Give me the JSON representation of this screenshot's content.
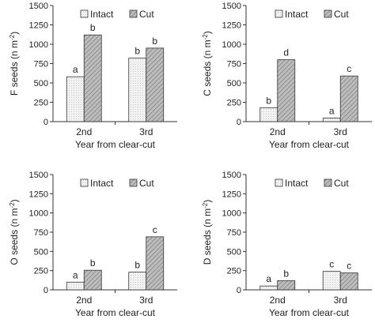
{
  "legend_items": [
    "Intact",
    "Cut"
  ],
  "colors": {
    "intact": "#f2f2f2",
    "intact_pattern": "#c9c9c9",
    "cut": "#bdbdbd",
    "cut_pattern": "#7a7a7a",
    "axis": "#333333"
  },
  "chart_data": [
    {
      "type": "bar",
      "panel": "top-left",
      "categories": [
        "2nd",
        "3rd"
      ],
      "series": [
        {
          "name": "Intact",
          "values": [
            580,
            820
          ],
          "labels": [
            "a",
            "b"
          ]
        },
        {
          "name": "Cut",
          "values": [
            1120,
            950
          ],
          "labels": [
            "b",
            "b"
          ]
        }
      ],
      "ylabel_main": "F seeds (n m",
      "ylabel_sup": "-2",
      "ylabel_end": ")",
      "xlabel": "Year from clear-cut",
      "ylim": [
        0,
        1500
      ],
      "yticks": [
        "0",
        "250",
        "500",
        "750",
        "1000",
        "1250",
        "1500"
      ],
      "legend": "top-right",
      "grid": false
    },
    {
      "type": "bar",
      "panel": "top-right",
      "categories": [
        "2nd",
        "3rd"
      ],
      "series": [
        {
          "name": "Intact",
          "values": [
            180,
            45
          ],
          "labels": [
            "b",
            "a"
          ]
        },
        {
          "name": "Cut",
          "values": [
            800,
            590
          ],
          "labels": [
            "d",
            "c"
          ]
        }
      ],
      "ylabel_main": "C seeds (n m",
      "ylabel_sup": "-2",
      "ylabel_end": ")",
      "xlabel": "Year from clear-cut",
      "ylim": [
        0,
        1500
      ],
      "yticks": [
        "0",
        "250",
        "500",
        "750",
        "1000",
        "1250",
        "1500"
      ],
      "legend": "top-right",
      "grid": false
    },
    {
      "type": "bar",
      "panel": "bottom-left",
      "categories": [
        "2nd",
        "3rd"
      ],
      "series": [
        {
          "name": "Intact",
          "values": [
            100,
            230
          ],
          "labels": [
            "a",
            "b"
          ]
        },
        {
          "name": "Cut",
          "values": [
            255,
            690
          ],
          "labels": [
            "b",
            "c"
          ]
        }
      ],
      "ylabel_main": "O seeds (n m",
      "ylabel_sup": "-2",
      "ylabel_end": ")",
      "xlabel": "Year from clear-cut",
      "ylim": [
        0,
        1500
      ],
      "yticks": [
        "0",
        "250",
        "500",
        "750",
        "1000",
        "1250",
        "1500"
      ],
      "legend": "top-right",
      "grid": false
    },
    {
      "type": "bar",
      "panel": "bottom-right",
      "categories": [
        "2nd",
        "3rd"
      ],
      "series": [
        {
          "name": "Intact",
          "values": [
            50,
            240
          ],
          "labels": [
            "a",
            "c"
          ]
        },
        {
          "name": "Cut",
          "values": [
            120,
            220
          ],
          "labels": [
            "b",
            "c"
          ]
        }
      ],
      "ylabel_main": "D seeds (n m",
      "ylabel_sup": "-2",
      "ylabel_end": ")",
      "xlabel": "Year from clear-cut",
      "ylim": [
        0,
        1500
      ],
      "yticks": [
        "0",
        "250",
        "500",
        "750",
        "1000",
        "1250",
        "1500"
      ],
      "legend": "top-right",
      "grid": false
    }
  ]
}
